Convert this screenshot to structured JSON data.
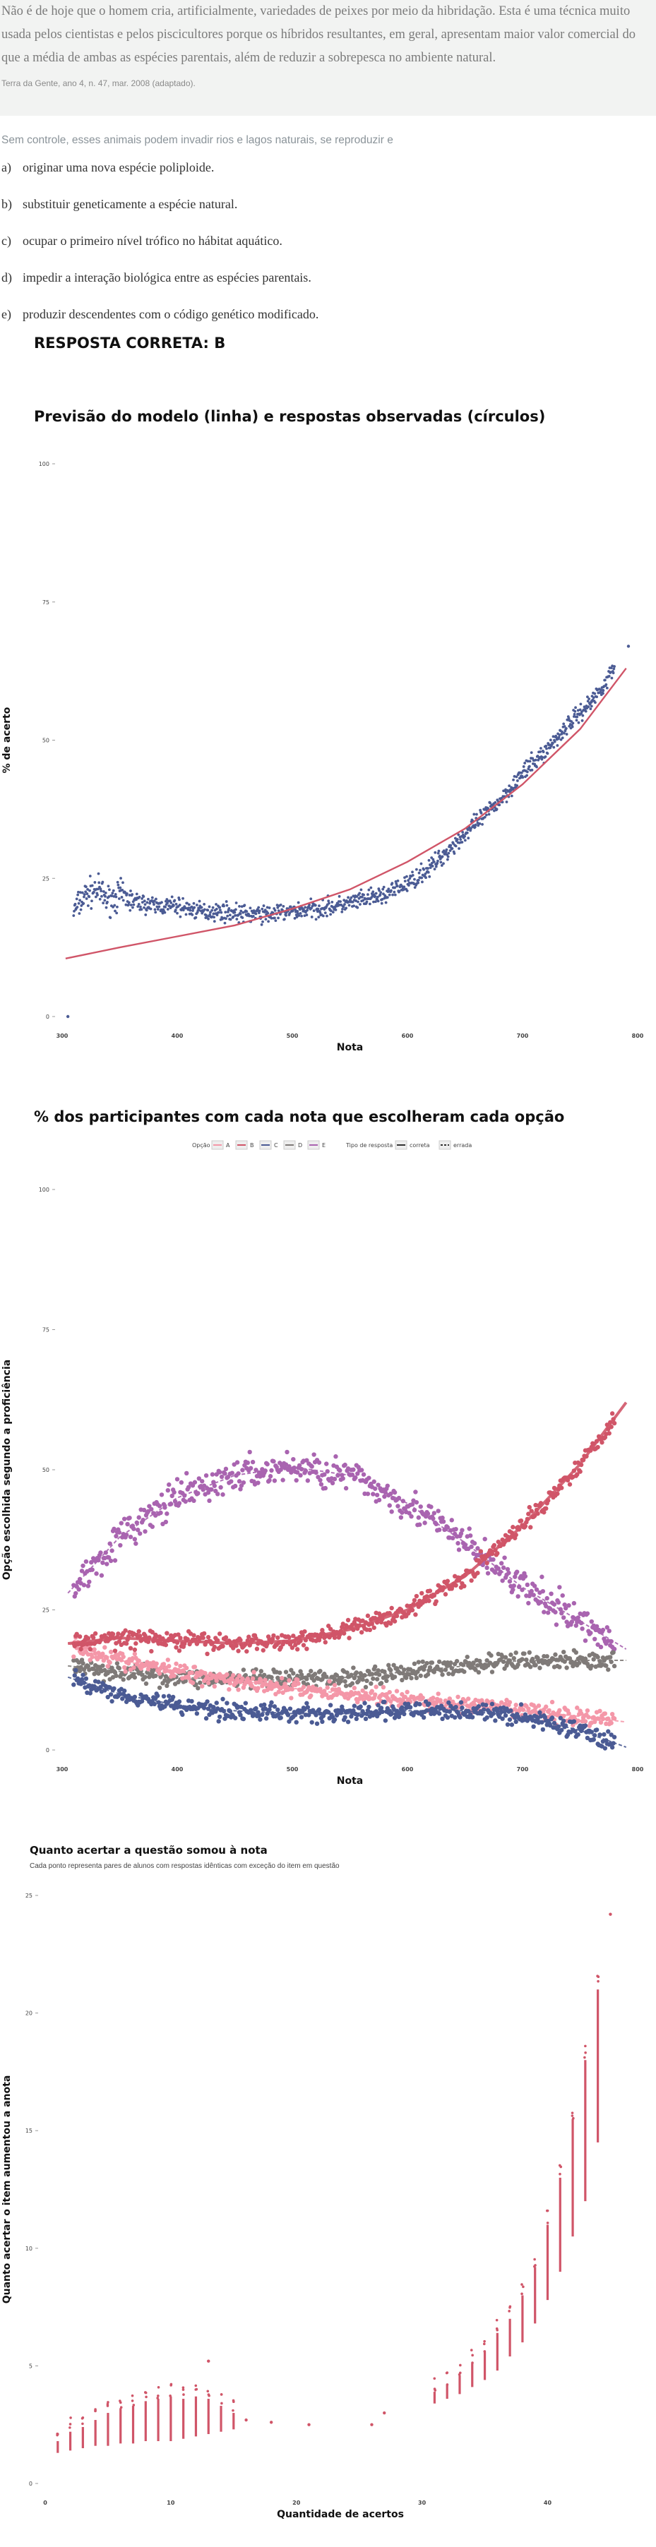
{
  "question": {
    "text": "Não é de hoje que o homem cria, artificialmente, variedades de peixes por meio da hibridação. Esta é uma técnica muito usada pelos cientistas e pelos piscicultores porque os híbridos resultantes, em geral, apresentam maior valor comercial do que a média de ambas as espécies parentais, além de reduzir a sobrepesca no ambiente natural.",
    "source": "Terra da Gente, ano 4, n. 47, mar. 2008 (adaptado).",
    "stem": "Sem controle, esses animais podem invadir rios e lagos naturais, se reproduzir e",
    "options": [
      {
        "letter": "a)",
        "text": "originar uma nova espécie poliploide."
      },
      {
        "letter": "b)",
        "text": "substituir geneticamente a espécie natural."
      },
      {
        "letter": "c)",
        "text": "ocupar o primeiro nível trófico no hábitat aquático."
      },
      {
        "letter": "d)",
        "text": "impedir a interação biológica entre as espécies parentais."
      },
      {
        "letter": "e)",
        "text": "produzir descendentes com o código genético modificado."
      }
    ],
    "answer": "RESPOSTA CORRETA: B"
  },
  "colors": {
    "A": "#f497a8",
    "B": "#d05568",
    "C": "#4b5b94",
    "D": "#7f7a78",
    "E": "#a964b0"
  },
  "charts": [
    {
      "chart_data": {
        "type": "scatter",
        "title": "Previsão do modelo (linha) e respostas observadas (círculos)",
        "xlabel": "Nota",
        "ylabel": "% de acerto",
        "xlim": [
          300,
          800
        ],
        "ylim": [
          0,
          100
        ],
        "xticks": [
          "300",
          "400",
          "500",
          "600",
          "700",
          "800"
        ],
        "yticks": [
          "0",
          "25",
          "50",
          "75",
          "100"
        ],
        "grid": false,
        "series": [
          {
            "kind": "points",
            "color": "#4b5b94",
            "x": [
              305,
              310,
              320,
              330,
              340,
              350,
              360,
              380,
              400,
              420,
              440,
              460,
              480,
              500,
              520,
              540,
              560,
              580,
              600,
              620,
              640,
              660,
              680,
              700,
              720,
              740,
              760,
              780,
              792
            ],
            "y": [
              0,
              19,
              22,
              23,
              21,
              22,
              21,
              20,
              20,
              19,
              19,
              18.5,
              18.5,
              19,
              19.5,
              20,
              21,
              22,
              24,
              27,
              31,
              35,
              39,
              44,
              48,
              53,
              57,
              63,
              67
            ]
          },
          {
            "kind": "line",
            "color": "#d05568",
            "x": [
              303,
              350,
              400,
              450,
              500,
              550,
              600,
              650,
              700,
              750,
              790
            ],
            "y": [
              10.5,
              12.5,
              14.5,
              16.5,
              19.5,
              23,
              28,
              34,
              42,
              52,
              63
            ]
          }
        ]
      }
    },
    {
      "chart_data": {
        "type": "scatter",
        "title": "% dos participantes com cada nota que escolheram cada opção",
        "xlabel": "Nota",
        "ylabel": "Opção escolhida segundo a proficiência",
        "xlim": [
          300,
          800
        ],
        "ylim": [
          0,
          100
        ],
        "xticks": [
          "300",
          "400",
          "500",
          "600",
          "700",
          "800"
        ],
        "yticks": [
          "0",
          "25",
          "50",
          "75",
          "100"
        ],
        "legend": {
          "position": "top",
          "title": "Opção",
          "entries": [
            "A",
            "B",
            "C",
            "D",
            "E"
          ],
          "type_title": "Tipo de resposta",
          "type_entries": [
            "correta",
            "errada"
          ]
        },
        "series": [
          {
            "name": "A",
            "color": "#f497a8",
            "x": [
              305,
              350,
              400,
              450,
              500,
              550,
              600,
              650,
              700,
              750,
              790
            ],
            "y": [
              19,
              16,
              14,
              12.5,
              11,
              10,
              9,
              8,
              7,
              6,
              5
            ]
          },
          {
            "name": "B",
            "color": "#d05568",
            "x": [
              305,
              350,
              400,
              450,
              500,
              550,
              600,
              650,
              700,
              750,
              790
            ],
            "y": [
              19,
              20,
              19.5,
              19,
              19.5,
              21.5,
              25,
              31,
              40,
              51,
              62
            ]
          },
          {
            "name": "C",
            "color": "#4b5b94",
            "x": [
              305,
              350,
              400,
              450,
              500,
              550,
              600,
              650,
              700,
              750,
              790
            ],
            "y": [
              13,
              10,
              8,
              7,
              6.5,
              6.5,
              7,
              7,
              6,
              3.5,
              0.5
            ]
          },
          {
            "name": "D",
            "color": "#7f7a78",
            "x": [
              305,
              350,
              400,
              450,
              500,
              550,
              600,
              650,
              700,
              750,
              790
            ],
            "y": [
              15,
              14,
              13,
              12.5,
              12.5,
              13,
              14,
              15,
              16,
              16,
              16
            ]
          },
          {
            "name": "E",
            "color": "#a964b0",
            "x": [
              305,
              350,
              400,
              450,
              500,
              550,
              600,
              650,
              700,
              750,
              790
            ],
            "y": [
              28,
              38,
              45,
              49,
              50.5,
              49,
              44,
              37,
              29,
              23,
              18
            ]
          }
        ]
      }
    },
    {
      "chart_data": {
        "type": "scatter",
        "title": "Quanto acertar a questão somou à nota",
        "subtitle": "Cada ponto representa pares de alunos com respostas idênticas com exceção do item em questão",
        "xlabel": "Quantidade de acertos",
        "ylabel": "Quanto acertar o item aumentou a anota",
        "xlim": [
          0,
          47
        ],
        "ylim": [
          0,
          25
        ],
        "xticks": [
          "0",
          "10",
          "20",
          "30",
          "40"
        ],
        "yticks": [
          "0",
          "5",
          "10",
          "15",
          "20",
          "25"
        ],
        "series": [
          {
            "kind": "ranges",
            "color": "#d05568",
            "x": [
              1,
              2,
              3,
              4,
              5,
              6,
              7,
              8,
              9,
              10,
              11,
              12,
              13,
              14,
              15
            ],
            "ymin": [
              1.3,
              1.4,
              1.5,
              1.6,
              1.6,
              1.7,
              1.7,
              1.8,
              1.8,
              1.8,
              1.9,
              2.0,
              2.1,
              2.2,
              2.3
            ],
            "ymax": [
              1.8,
              2.2,
              2.4,
              2.7,
              3.0,
              3.2,
              3.3,
              3.5,
              3.6,
              3.7,
              3.6,
              3.7,
              3.6,
              3.3,
              3.0
            ]
          },
          {
            "kind": "ranges",
            "color": "#d05568",
            "x": [
              31,
              32,
              33,
              34,
              35,
              36,
              37,
              38,
              39,
              40,
              41,
              42,
              43,
              44
            ],
            "ymin": [
              3.4,
              3.6,
              3.8,
              4.1,
              4.4,
              4.8,
              5.4,
              6.0,
              6.8,
              7.8,
              9.0,
              10.5,
              12.0,
              14.5
            ],
            "ymax": [
              3.9,
              4.2,
              4.6,
              5.1,
              5.6,
              6.4,
              7.0,
              8.0,
              9.2,
              11.0,
              13.0,
              15.5,
              18.0,
              21.0
            ]
          },
          {
            "kind": "points",
            "color": "#d05568",
            "x": [
              13,
              16,
              18,
              21,
              26,
              27,
              45
            ],
            "y": [
              5.2,
              2.7,
              2.6,
              2.5,
              2.5,
              3.0,
              24.2
            ]
          }
        ]
      }
    }
  ]
}
